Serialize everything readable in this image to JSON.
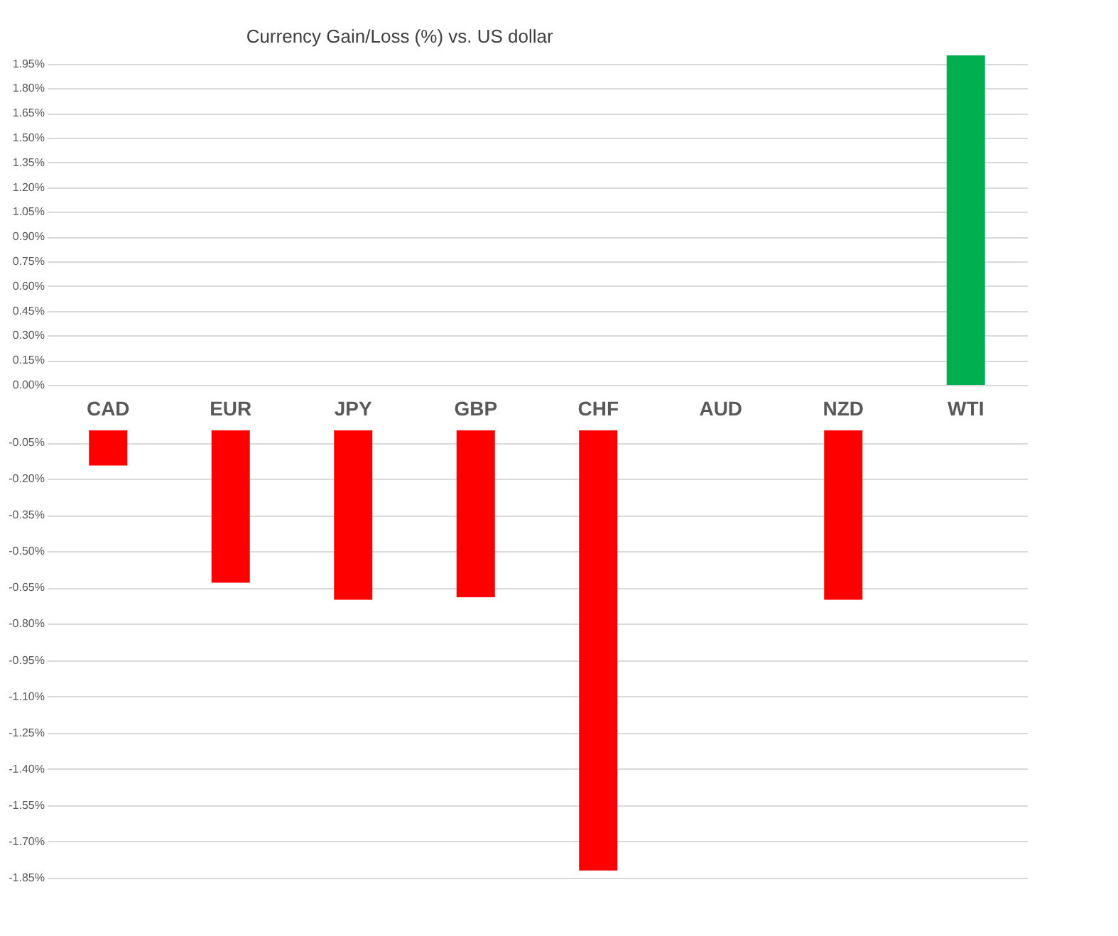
{
  "chart_data": [
    {
      "type": "bar",
      "title": "Currency  Gain/Loss (%) vs. US dollar",
      "categories": [
        "CAD",
        "EUR",
        "JPY",
        "GBP",
        "CHF",
        "AUD",
        "NZD",
        "WTI"
      ],
      "values": [
        null,
        null,
        null,
        null,
        null,
        null,
        null,
        2.0
      ],
      "color": "#00b050",
      "ylim": [
        0,
        2.0
      ],
      "yticks": [
        {
          "value": 0,
          "label": "0.00%"
        },
        {
          "value": 0.15,
          "label": "0.15%"
        },
        {
          "value": 0.3,
          "label": "0.30%"
        },
        {
          "value": 0.45,
          "label": "0.45%"
        },
        {
          "value": 0.6,
          "label": "0.60%"
        },
        {
          "value": 0.75,
          "label": "0.75%"
        },
        {
          "value": 0.9,
          "label": "0.90%"
        },
        {
          "value": 1.05,
          "label": "1.05%"
        },
        {
          "value": 1.2,
          "label": "1.20%"
        },
        {
          "value": 1.35,
          "label": "1.35%"
        },
        {
          "value": 1.5,
          "label": "1.50%"
        },
        {
          "value": 1.65,
          "label": "1.65%"
        },
        {
          "value": 1.8,
          "label": "1.80%"
        },
        {
          "value": 1.95,
          "label": "1.95%"
        }
      ],
      "grid": "y"
    },
    {
      "type": "bar",
      "categories": [
        null,
        null,
        null,
        null,
        null,
        null,
        null,
        null
      ],
      "values": [
        -0.145,
        -0.63,
        -0.7,
        -0.69,
        -1.82,
        null,
        -0.7,
        null
      ],
      "color": "#ff0000",
      "ylim": [
        -1.85,
        0
      ],
      "yticks": [
        {
          "value": -0.05,
          "label": "-0.05%"
        },
        {
          "value": -0.2,
          "label": "-0.20%"
        },
        {
          "value": -0.35,
          "label": "-0.35%"
        },
        {
          "value": -0.5,
          "label": "-0.50%"
        },
        {
          "value": -0.65,
          "label": "-0.65%"
        },
        {
          "value": -0.8,
          "label": "-0.80%"
        },
        {
          "value": -0.95,
          "label": "-0.95%"
        },
        {
          "value": -1.1,
          "label": "-1.10%"
        },
        {
          "value": -1.25,
          "label": "-1.25%"
        },
        {
          "value": -1.4,
          "label": "-1.40%"
        },
        {
          "value": -1.55,
          "label": "-1.55%"
        },
        {
          "value": -1.7,
          "label": "-1.70%"
        },
        {
          "value": -1.85,
          "label": "-1.85%"
        }
      ],
      "grid": "y",
      "tick_labels": "y"
    }
  ]
}
